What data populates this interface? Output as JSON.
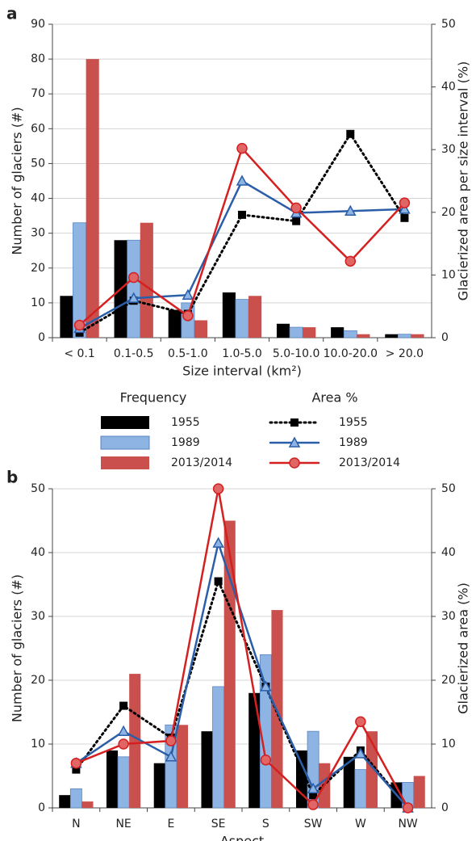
{
  "chart_data": [
    {
      "type": "bar",
      "panel": "a",
      "x_label": "Size interval (km²)",
      "y_label": "Number of glaciers (#)",
      "y2_label": "Glacierized area per size interval (%)",
      "categories": [
        "< 0.1",
        "0.1-0.5",
        "0.5-1.0",
        "1.0-5.0",
        "5.0-10.0",
        "10.0-20.0",
        "> 20.0"
      ],
      "ylim": [
        0,
        90
      ],
      "yticks": [
        0,
        10,
        20,
        30,
        40,
        50,
        60,
        70,
        80,
        90
      ],
      "y2lim": [
        0,
        50
      ],
      "y2ticks": [
        0,
        10,
        20,
        30,
        40,
        50
      ],
      "grid": true,
      "legend": {
        "bar_title": "Frequency",
        "line_title": "Area %"
      },
      "series": [
        {
          "name": "1955",
          "type": "bar",
          "color": "#000000",
          "values": [
            12,
            28,
            8,
            13,
            4,
            3,
            1
          ]
        },
        {
          "name": "1989",
          "type": "bar",
          "color": "#8db4e2",
          "values": [
            33,
            28,
            10,
            11,
            3,
            2,
            1
          ]
        },
        {
          "name": "2013/2014",
          "type": "bar",
          "color": "#c9504d",
          "values": [
            80,
            33,
            5,
            12,
            3,
            1,
            1
          ]
        },
        {
          "name": "1955",
          "type": "line",
          "axis": "y2",
          "marker": "square",
          "dashed": true,
          "color": "#000000",
          "values": [
            0.8,
            5.9,
            3.8,
            19.6,
            18.6,
            32.5,
            19.1
          ]
        },
        {
          "name": "1989",
          "type": "line",
          "axis": "y2",
          "marker": "triangle",
          "dashed": false,
          "color": "#2a5ea8",
          "values": [
            1.5,
            6.3,
            6.8,
            25.0,
            19.9,
            20.2,
            20.5
          ]
        },
        {
          "name": "2013/2014",
          "type": "line",
          "axis": "y2",
          "marker": "circle",
          "dashed": false,
          "color": "#d42020",
          "values": [
            2.0,
            9.6,
            3.5,
            30.2,
            20.7,
            12.2,
            21.5
          ]
        }
      ]
    },
    {
      "type": "bar",
      "panel": "b",
      "x_label": "Aspect",
      "y_label": "Number of glaciers (#)",
      "y2_label": "Glacierized area (%)",
      "categories": [
        "N",
        "NE",
        "E",
        "SE",
        "S",
        "SW",
        "W",
        "NW"
      ],
      "ylim": [
        0,
        50
      ],
      "yticks": [
        0,
        10,
        20,
        30,
        40,
        50
      ],
      "y2lim": [
        0,
        50
      ],
      "y2ticks": [
        0,
        10,
        20,
        30,
        40,
        50
      ],
      "grid": true,
      "series": [
        {
          "type": "bar",
          "color": "#000000",
          "values": [
            2,
            9,
            7,
            12,
            18,
            9,
            8,
            4
          ]
        },
        {
          "type": "bar",
          "color": "#8db4e2",
          "values": [
            3,
            8,
            13,
            19,
            24,
            12,
            6,
            4
          ]
        },
        {
          "type": "bar",
          "color": "#c9504d",
          "values": [
            1,
            21,
            13,
            45,
            31,
            7,
            12,
            5
          ]
        },
        {
          "type": "line",
          "axis": "y2",
          "marker": "square",
          "dashed": true,
          "color": "#000000",
          "values": [
            6,
            16,
            11,
            35.5,
            19,
            2,
            9,
            0
          ]
        },
        {
          "type": "line",
          "axis": "y2",
          "marker": "triangle",
          "dashed": false,
          "color": "#2a5ea8",
          "values": [
            7,
            12,
            8,
            41.5,
            19,
            3,
            8.5,
            0
          ]
        },
        {
          "type": "line",
          "axis": "y2",
          "marker": "circle",
          "dashed": false,
          "color": "#d42020",
          "values": [
            7,
            10,
            10.5,
            50,
            7.5,
            0.5,
            13.5,
            0
          ]
        }
      ]
    }
  ]
}
